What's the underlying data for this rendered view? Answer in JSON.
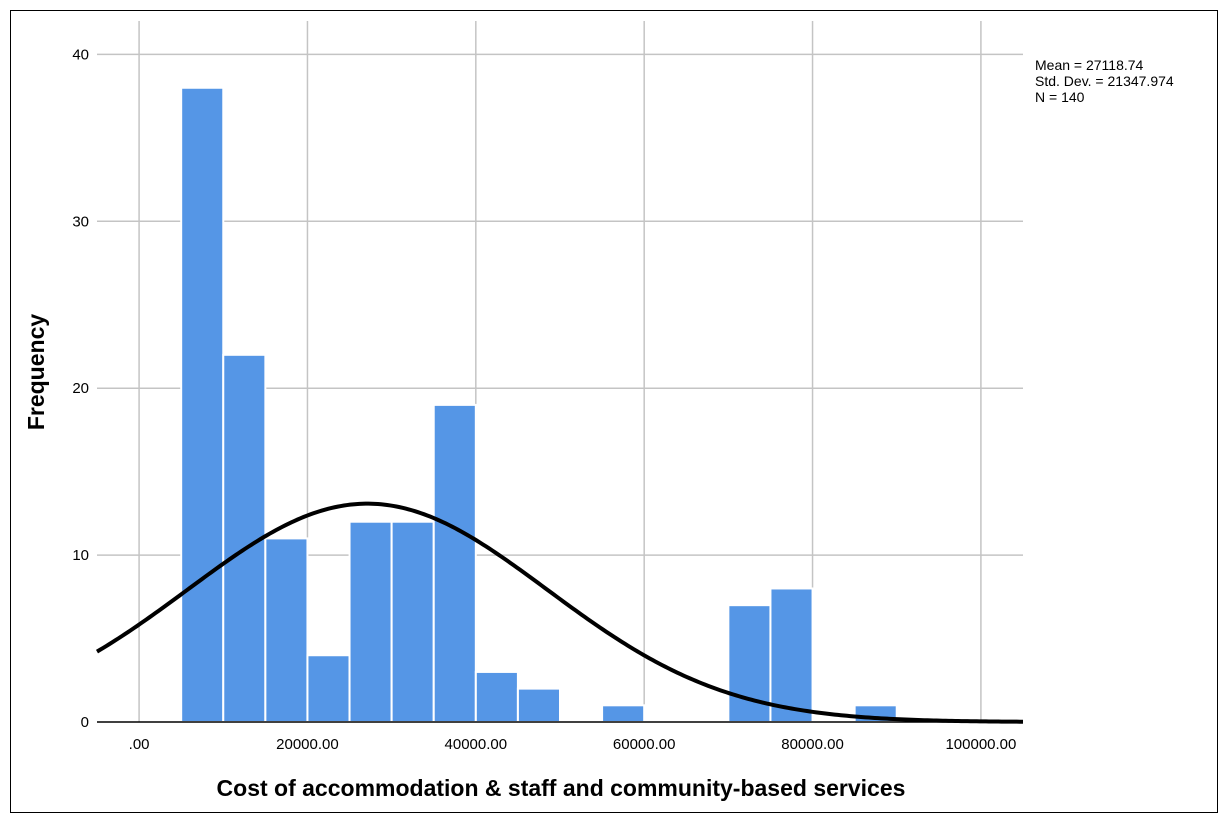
{
  "chart_data": {
    "type": "bar",
    "subtype": "histogram-with-normal-curve",
    "title": "",
    "xlabel": "Cost of accommodation & staff and community-based services",
    "ylabel": "Frequency",
    "xlim": [
      -5000,
      105000
    ],
    "ylim": [
      0,
      42
    ],
    "grid": true,
    "x_ticks": [
      {
        "value": 0,
        "label": ".00"
      },
      {
        "value": 20000,
        "label": "20000.00"
      },
      {
        "value": 40000,
        "label": "40000.00"
      },
      {
        "value": 60000,
        "label": "60000.00"
      },
      {
        "value": 80000,
        "label": "80000.00"
      },
      {
        "value": 100000,
        "label": "100000.00"
      }
    ],
    "y_ticks": [
      {
        "value": 0,
        "label": "0"
      },
      {
        "value": 10,
        "label": "10"
      },
      {
        "value": 20,
        "label": "20"
      },
      {
        "value": 30,
        "label": "30"
      },
      {
        "value": 40,
        "label": "40"
      }
    ],
    "bin_width": 5000,
    "bins": [
      {
        "start": 5000,
        "end": 10000,
        "count": 38
      },
      {
        "start": 10000,
        "end": 15000,
        "count": 22
      },
      {
        "start": 15000,
        "end": 20000,
        "count": 11
      },
      {
        "start": 20000,
        "end": 25000,
        "count": 4
      },
      {
        "start": 25000,
        "end": 30000,
        "count": 12
      },
      {
        "start": 30000,
        "end": 35000,
        "count": 12
      },
      {
        "start": 35000,
        "end": 40000,
        "count": 19
      },
      {
        "start": 40000,
        "end": 45000,
        "count": 3
      },
      {
        "start": 45000,
        "end": 50000,
        "count": 2
      },
      {
        "start": 55000,
        "end": 60000,
        "count": 1
      },
      {
        "start": 70000,
        "end": 75000,
        "count": 7
      },
      {
        "start": 75000,
        "end": 80000,
        "count": 8
      },
      {
        "start": 85000,
        "end": 90000,
        "count": 1
      }
    ],
    "normal_curve": {
      "mean": 27118.74,
      "std_dev": 21347.974,
      "n": 140
    },
    "stats_text": [
      "Mean = 27118.74",
      "Std. Dev. = 21347.974",
      "N = 140"
    ],
    "colors": {
      "bar": "#5596e6",
      "bar_edge": "#ffffff",
      "curve": "#000000",
      "grid": "#c4c4c4"
    }
  }
}
